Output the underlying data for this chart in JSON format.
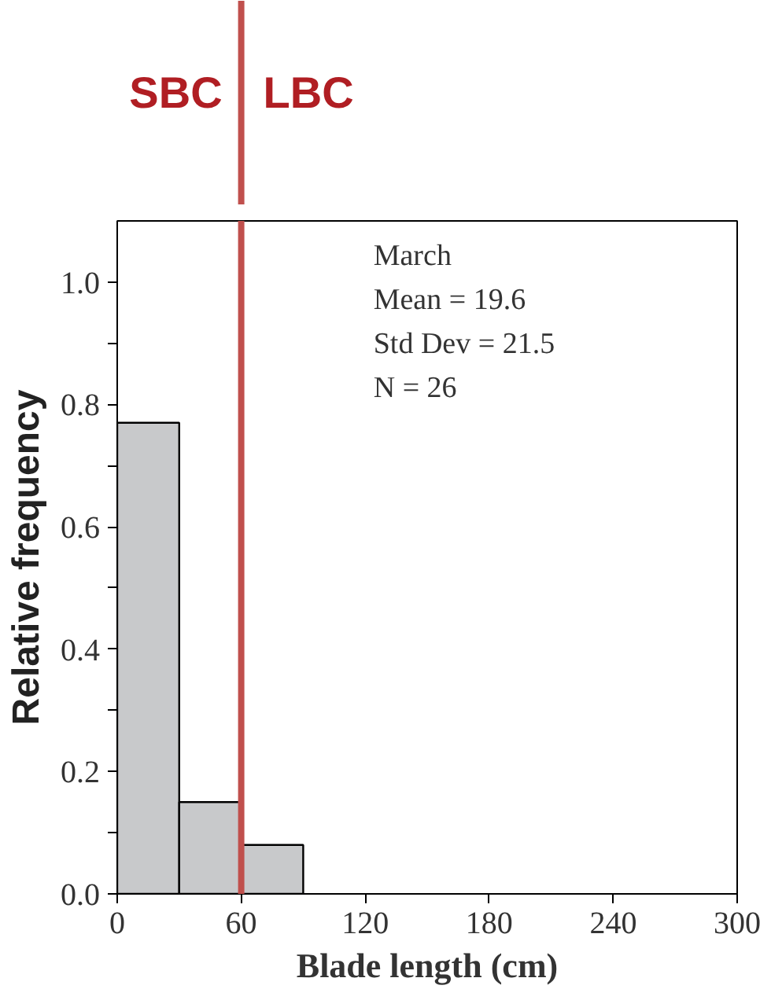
{
  "chart_data": {
    "type": "histogram",
    "xlabel": "Blade length (cm)",
    "ylabel": "Relative frequency",
    "bins": [
      0,
      30,
      60,
      90
    ],
    "values": [
      0.77,
      0.15,
      0.08
    ],
    "color": "#c8c9cb",
    "xlim": [
      0,
      300
    ],
    "xticks": [
      0,
      60,
      120,
      180,
      240,
      300
    ],
    "ylim": [
      0,
      1.1
    ],
    "yticks": [
      {
        "value": 0.0,
        "label": "0.0"
      },
      {
        "value": 0.1,
        "label": null
      },
      {
        "value": 0.2,
        "label": "0.2"
      },
      {
        "value": 0.3,
        "label": null
      },
      {
        "value": 0.4,
        "label": "0.4"
      },
      {
        "value": 0.5,
        "label": null
      },
      {
        "value": 0.6,
        "label": "0.6"
      },
      {
        "value": 0.7,
        "label": null
      },
      {
        "value": 0.8,
        "label": "0.8"
      },
      {
        "value": 0.9,
        "label": null
      },
      {
        "value": 1.0,
        "label": "1.0"
      }
    ],
    "grid": false,
    "ref_lines": [
      {
        "axis": "x",
        "value": 60,
        "color": "#c0504d"
      }
    ],
    "annotations": [
      "SBC",
      "LBC",
      "March",
      "Mean = 19.6",
      "Std Dev = 21.5",
      "N = 26"
    ]
  }
}
